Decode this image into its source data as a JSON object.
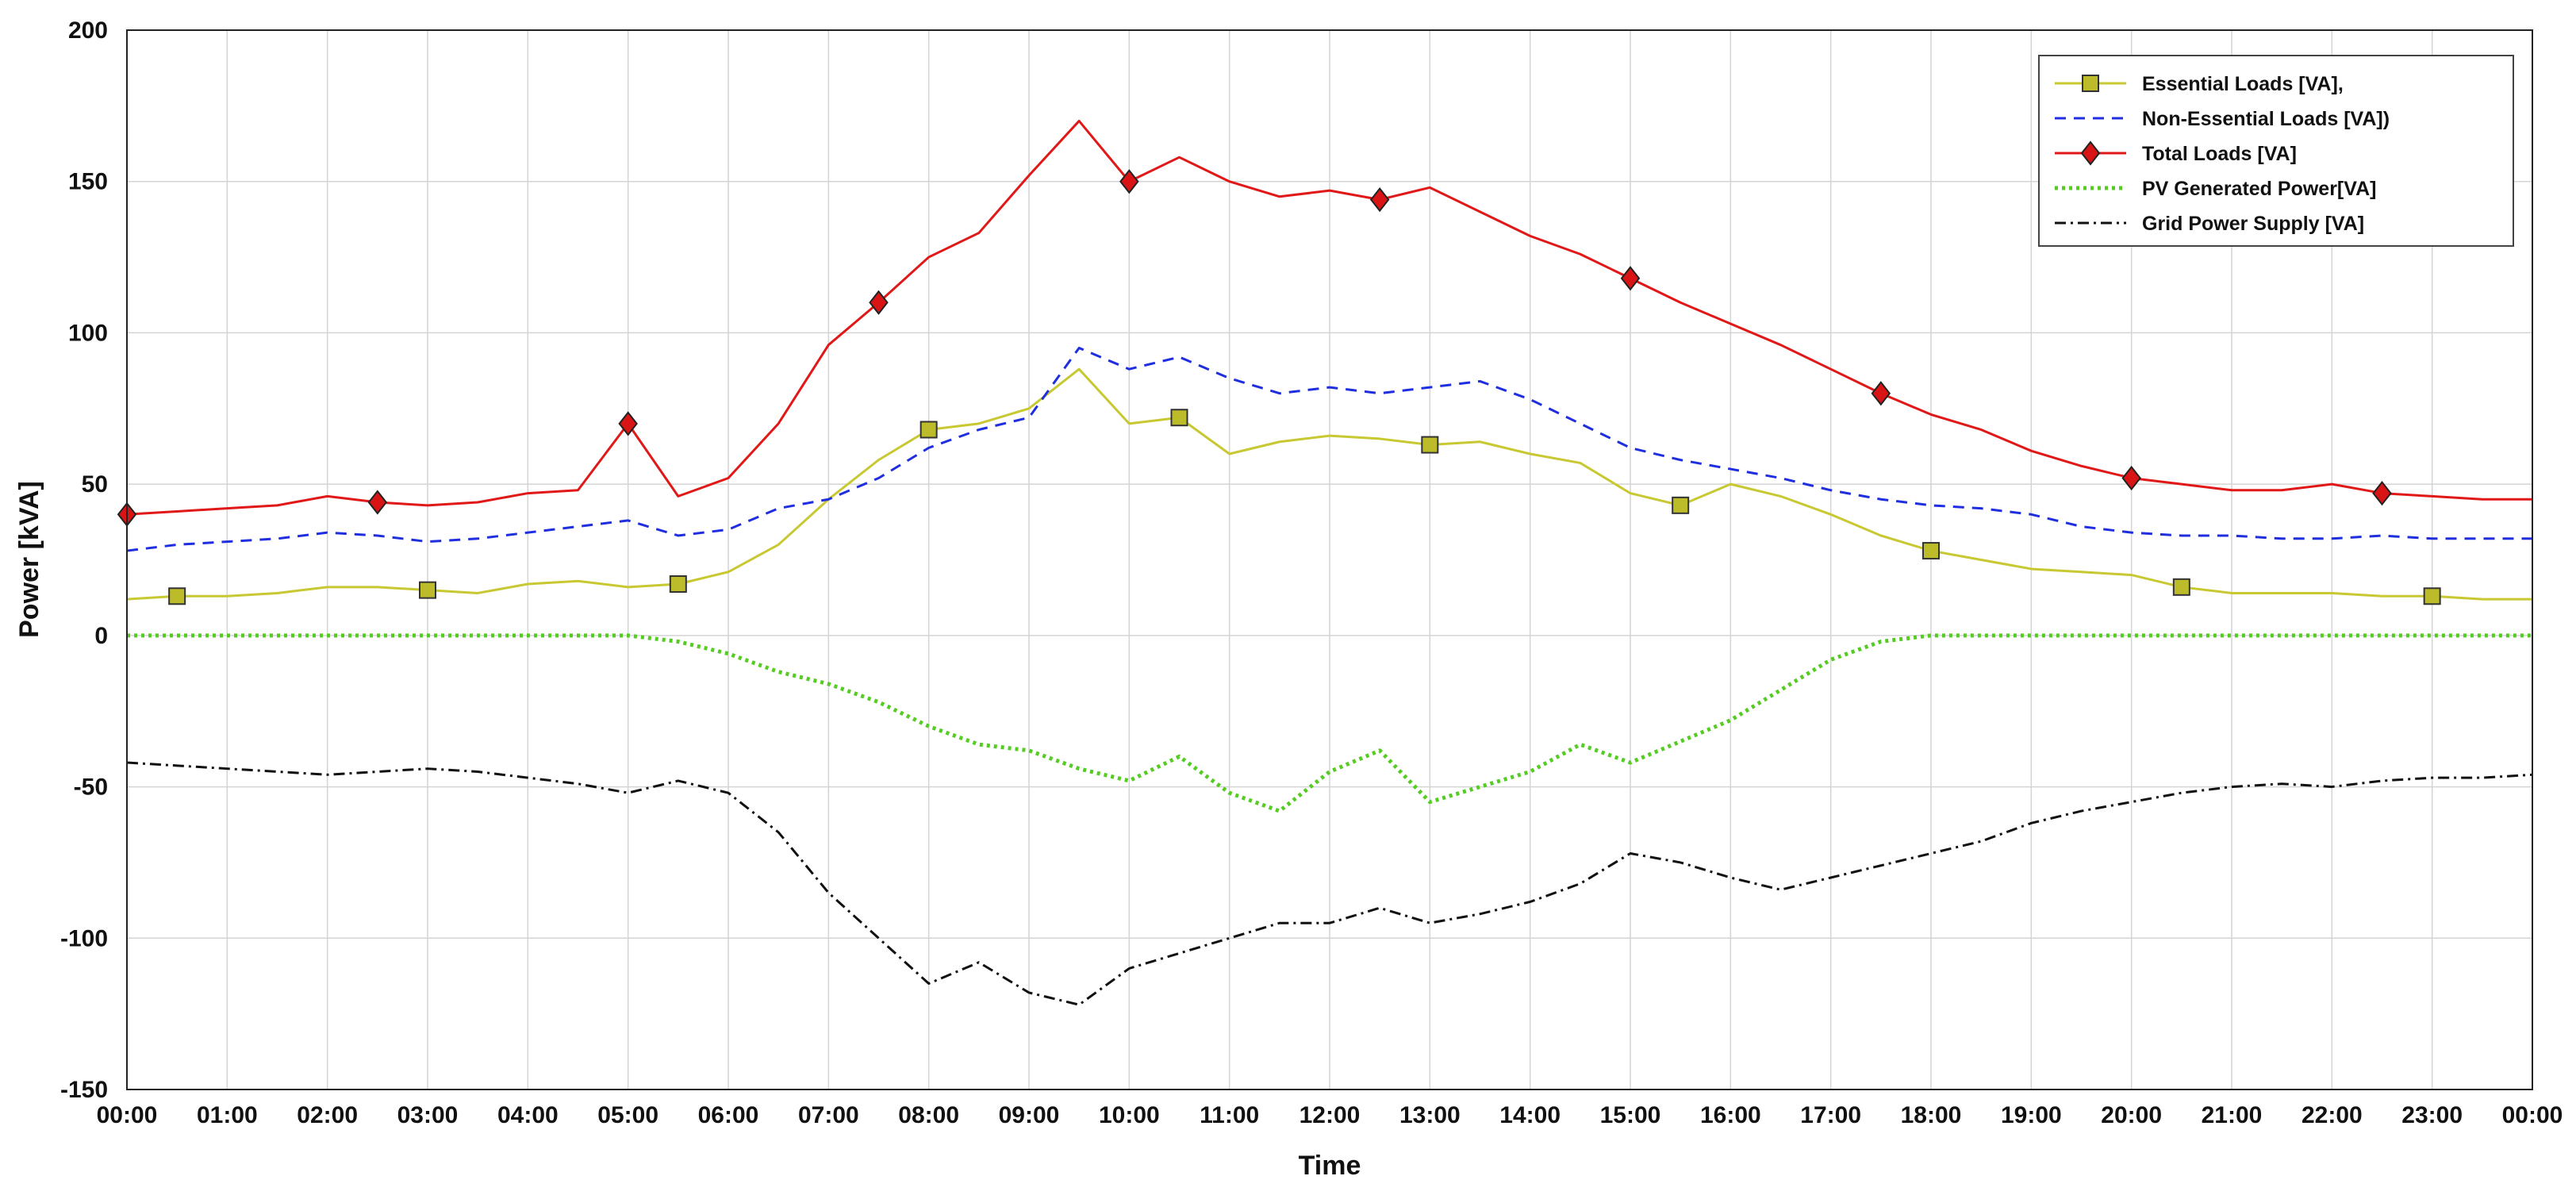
{
  "chart_data": {
    "type": "line",
    "xlabel": "Time",
    "ylabel": "Power [kVA]",
    "xlim": [
      0,
      24
    ],
    "ylim": [
      -150,
      200
    ],
    "grid": true,
    "legend_position": "top-right",
    "x_ticks": [
      "00:00",
      "01:00",
      "02:00",
      "03:00",
      "04:00",
      "05:00",
      "06:00",
      "07:00",
      "08:00",
      "09:00",
      "10:00",
      "11:00",
      "12:00",
      "13:00",
      "14:00",
      "15:00",
      "16:00",
      "17:00",
      "18:00",
      "19:00",
      "20:00",
      "21:00",
      "22:00",
      "23:00",
      "00:00"
    ],
    "y_ticks": [
      -150,
      -100,
      -50,
      0,
      50,
      100,
      150,
      200
    ],
    "x": [
      0,
      0.5,
      1,
      1.5,
      2,
      2.5,
      3,
      3.5,
      4,
      4.5,
      5,
      5.5,
      6,
      6.5,
      7,
      7.5,
      8,
      8.5,
      9,
      9.5,
      10,
      10.5,
      11,
      11.5,
      12,
      12.5,
      13,
      13.5,
      14,
      14.5,
      15,
      15.5,
      16,
      16.5,
      17,
      17.5,
      18,
      18.5,
      19,
      19.5,
      20,
      20.5,
      21,
      21.5,
      22,
      22.5,
      23,
      23.5,
      24
    ],
    "series": [
      {
        "name": "Essential Loads [VA],",
        "color": "#c8c832",
        "style": "solid-square-markers",
        "values": [
          12,
          13,
          13,
          14,
          16,
          16,
          15,
          14,
          17,
          18,
          16,
          17,
          21,
          30,
          45,
          58,
          68,
          70,
          75,
          88,
          70,
          72,
          60,
          64,
          66,
          65,
          63,
          64,
          60,
          57,
          47,
          43,
          50,
          46,
          40,
          33,
          28,
          25,
          22,
          21,
          20,
          16,
          14,
          14,
          14,
          13,
          13,
          12,
          12
        ]
      },
      {
        "name": "Non-Essential Loads [VA])",
        "color": "#1f2fe0",
        "style": "dashed",
        "values": [
          28,
          30,
          31,
          32,
          34,
          33,
          31,
          32,
          34,
          36,
          38,
          33,
          35,
          42,
          45,
          52,
          62,
          68,
          72,
          95,
          88,
          92,
          85,
          80,
          82,
          80,
          82,
          84,
          78,
          70,
          62,
          58,
          55,
          52,
          48,
          45,
          43,
          42,
          40,
          36,
          34,
          33,
          33,
          32,
          32,
          33,
          32,
          32,
          32
        ]
      },
      {
        "name": "Total Loads [VA]",
        "color": "#e01818",
        "style": "solid-diamond-markers",
        "values": [
          40,
          41,
          42,
          43,
          46,
          44,
          43,
          44,
          47,
          48,
          70,
          46,
          52,
          70,
          96,
          110,
          125,
          133,
          152,
          170,
          150,
          158,
          150,
          145,
          147,
          144,
          148,
          140,
          132,
          126,
          118,
          110,
          103,
          96,
          88,
          80,
          73,
          68,
          61,
          56,
          52,
          50,
          48,
          48,
          50,
          47,
          46,
          45,
          45
        ]
      },
      {
        "name": "PV Generated Power[VA]",
        "color": "#55cc22",
        "style": "dotted",
        "values": [
          0,
          0,
          0,
          0,
          0,
          0,
          0,
          0,
          0,
          0,
          0,
          -2,
          -6,
          -12,
          -16,
          -22,
          -30,
          -36,
          -38,
          -44,
          -48,
          -40,
          -52,
          -58,
          -45,
          -38,
          -55,
          -50,
          -45,
          -36,
          -42,
          -35,
          -28,
          -18,
          -8,
          -2,
          0,
          0,
          0,
          0,
          0,
          0,
          0,
          0,
          0,
          0,
          0,
          0,
          0
        ]
      },
      {
        "name": "Grid Power Supply [VA]",
        "color": "#111111",
        "style": "dash-dot",
        "values": [
          -42,
          -43,
          -44,
          -45,
          -46,
          -45,
          -44,
          -45,
          -47,
          -49,
          -52,
          -48,
          -52,
          -65,
          -85,
          -100,
          -115,
          -108,
          -118,
          -122,
          -110,
          -105,
          -100,
          -95,
          -95,
          -90,
          -95,
          -92,
          -88,
          -82,
          -72,
          -75,
          -80,
          -84,
          -80,
          -76,
          -72,
          -68,
          -62,
          -58,
          -55,
          -52,
          -50,
          -49,
          -50,
          -48,
          -47,
          -47,
          -46
        ]
      }
    ]
  }
}
